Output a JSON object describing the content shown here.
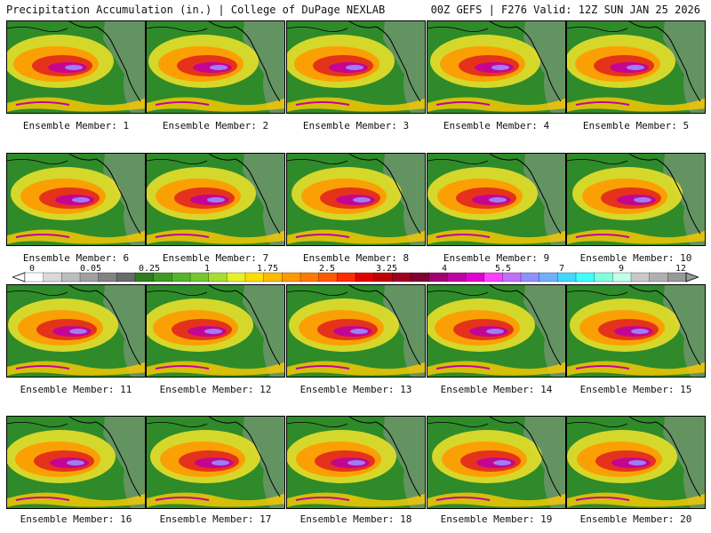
{
  "header": {
    "left": "Precipitation Accumulation (in.) | College of DuPage NEXLAB",
    "right": "00Z GEFS | F276 Valid: 12Z SUN JAN 25 2026"
  },
  "members": [
    "Ensemble Member: 1",
    "Ensemble Member: 2",
    "Ensemble Member: 3",
    "Ensemble Member: 4",
    "Ensemble Member: 5",
    "Ensemble Member: 6",
    "Ensemble Member: 7",
    "Ensemble Member: 8",
    "Ensemble Member: 9",
    "Ensemble Member: 10",
    "Ensemble Member: 11",
    "Ensemble Member: 12",
    "Ensemble Member: 13",
    "Ensemble Member: 14",
    "Ensemble Member: 15",
    "Ensemble Member: 16",
    "Ensemble Member: 17",
    "Ensemble Member: 18",
    "Ensemble Member: 19",
    "Ensemble Member: 20"
  ],
  "colorbar": {
    "labels": [
      "0",
      "0.05",
      "0.25",
      "1",
      "1.75",
      "2.5",
      "3.25",
      "4",
      "5.5",
      "7",
      "9",
      "12"
    ],
    "colors": [
      "#ffffff",
      "#d9d9d9",
      "#bdbdbd",
      "#a0a0a0",
      "#828282",
      "#6a6a6a",
      "#2e7d1f",
      "#3f9a25",
      "#55b52a",
      "#74c72f",
      "#a8dc2f",
      "#e8f02a",
      "#ffdd00",
      "#ffbb00",
      "#ff9900",
      "#ff7a00",
      "#ff5a00",
      "#ff2a00",
      "#e00000",
      "#c00000",
      "#a00020",
      "#800030",
      "#a00070",
      "#c000a0",
      "#e000d0",
      "#ff40ff",
      "#c070ff",
      "#9090ff",
      "#6fb0ff",
      "#40d8ff",
      "#40ffff",
      "#80ffe0",
      "#c0ffe8",
      "#c8c8c8",
      "#b0b0b0",
      "#989898"
    ]
  }
}
